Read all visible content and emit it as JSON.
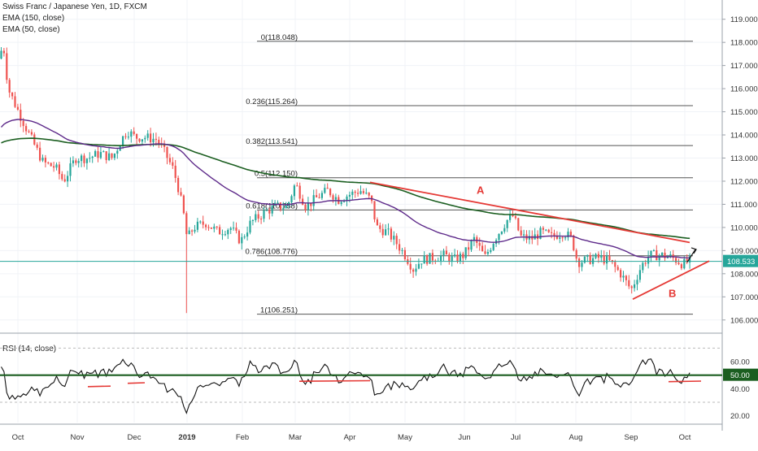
{
  "chart_data": {
    "type": "candlestick",
    "title": "Swiss Franc / Japanese Yen, 1D, FXCM",
    "indicators": [
      "EMA (150, close)",
      "EMA (50, close)"
    ],
    "last_price": "108.533",
    "x_ticks": [
      "Oct",
      "Nov",
      "Dec",
      "2019",
      "Feb",
      "Mar",
      "Apr",
      "May",
      "Jun",
      "Jul",
      "Aug",
      "Sep",
      "Oct"
    ],
    "y_ticks": [
      "119.000",
      "118.000",
      "117.000",
      "116.000",
      "115.000",
      "114.000",
      "113.000",
      "112.000",
      "111.000",
      "110.000",
      "109.000",
      "108.000",
      "107.000",
      "106.000"
    ],
    "ylim": [
      105.5,
      119.2
    ],
    "fib_levels": [
      {
        "label": "0(118.048)",
        "value": 118.048
      },
      {
        "label": "0.236(115.264)",
        "value": 115.264
      },
      {
        "label": "0.382(113.541)",
        "value": 113.541
      },
      {
        "label": "0.5(112.150)",
        "value": 112.15
      },
      {
        "label": "0.618(110.758)",
        "value": 110.758
      },
      {
        "label": "0.786(108.776)",
        "value": 108.776
      },
      {
        "label": "1(106.251)",
        "value": 106.251
      }
    ],
    "annotations": [
      "A",
      "B"
    ],
    "colors": {
      "up": "#26a69a",
      "down": "#ef5350",
      "ema150": "#1b5e20",
      "ema50": "#5e2a8a",
      "trendline": "#e53935",
      "fib": "#555555",
      "price_line": "#26a69a",
      "rsi": "#111111",
      "rsi_level": "#1b5e20"
    },
    "rsi": {
      "label": "RSI (14, close)",
      "value": "50.00",
      "y_ticks": [
        "60.00",
        "40.00",
        "20.00"
      ],
      "ylim": [
        15,
        75
      ]
    }
  }
}
